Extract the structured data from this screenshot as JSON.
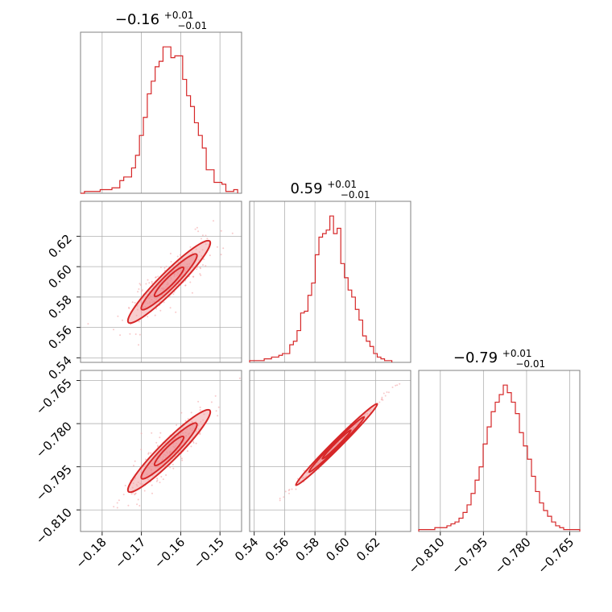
{
  "chart_data": {
    "type": "corner",
    "color": "#d62728",
    "grid": true,
    "parameters": [
      {
        "id": "p0",
        "median": "−0.16",
        "plus": "+0.01",
        "minus": "−0.01",
        "range": [
          -0.1855,
          -0.1445
        ],
        "ticks": [
          -0.18,
          -0.17,
          -0.16,
          -0.15
        ],
        "tick_labels": [
          "−0.18",
          "−0.17",
          "−0.16",
          "−0.15"
        ],
        "hist_edges_start": -0.1855,
        "hist_bin_width": 0.001,
        "hist_counts": [
          0,
          1,
          1,
          1,
          1,
          2,
          2,
          2,
          3,
          3,
          7,
          9,
          9,
          14,
          21,
          32,
          42,
          55,
          62,
          70,
          73,
          81,
          81,
          75,
          76,
          76,
          63,
          54,
          48,
          39,
          32,
          25,
          13,
          13,
          6,
          6,
          5,
          1,
          1,
          2
        ]
      },
      {
        "id": "p1",
        "median": "0.59",
        "plus": "+0.01",
        "minus": "−0.01",
        "range": [
          0.537,
          0.643
        ],
        "ticks": [
          0.54,
          0.56,
          0.58,
          0.6,
          0.62
        ],
        "tick_labels": [
          "0.54",
          "0.56",
          "0.58",
          "0.60",
          "0.62"
        ],
        "hist_edges_start": 0.537,
        "hist_bin_width": 0.0024,
        "hist_counts": [
          1,
          1,
          1,
          1,
          2,
          2,
          3,
          3,
          4,
          5,
          5,
          10,
          12,
          18,
          28,
          29,
          38,
          45,
          61,
          71,
          73,
          75,
          83,
          73,
          76,
          56,
          48,
          41,
          37,
          30,
          24,
          15,
          12,
          9,
          5,
          3,
          2,
          1,
          1
        ]
      },
      {
        "id": "p2",
        "median": "−0.79",
        "plus": "+0.01",
        "minus": "−0.01",
        "range": [
          -0.8175,
          -0.7615
        ],
        "ticks": [
          -0.81,
          -0.795,
          -0.78,
          -0.765
        ],
        "tick_labels": [
          "−0.810",
          "−0.795",
          "−0.780",
          "−0.765"
        ],
        "hist_edges_start": -0.8175,
        "hist_bin_width": 0.0014,
        "hist_counts": [
          1,
          1,
          1,
          1,
          2,
          2,
          2,
          3,
          4,
          5,
          7,
          10,
          14,
          20,
          27,
          34,
          46,
          55,
          63,
          68,
          72,
          77,
          73,
          68,
          62,
          52,
          45,
          38,
          29,
          21,
          15,
          11,
          8,
          5,
          3,
          2,
          1,
          1,
          1,
          1
        ]
      }
    ],
    "correlations": [
      {
        "row": 1,
        "col": 0,
        "slope_sign": 1,
        "band_width": 0.16
      },
      {
        "row": 2,
        "col": 0,
        "slope_sign": 1,
        "band_width": 0.16
      },
      {
        "row": 2,
        "col": 1,
        "slope_sign": 1,
        "band_width": 0.035
      }
    ]
  }
}
